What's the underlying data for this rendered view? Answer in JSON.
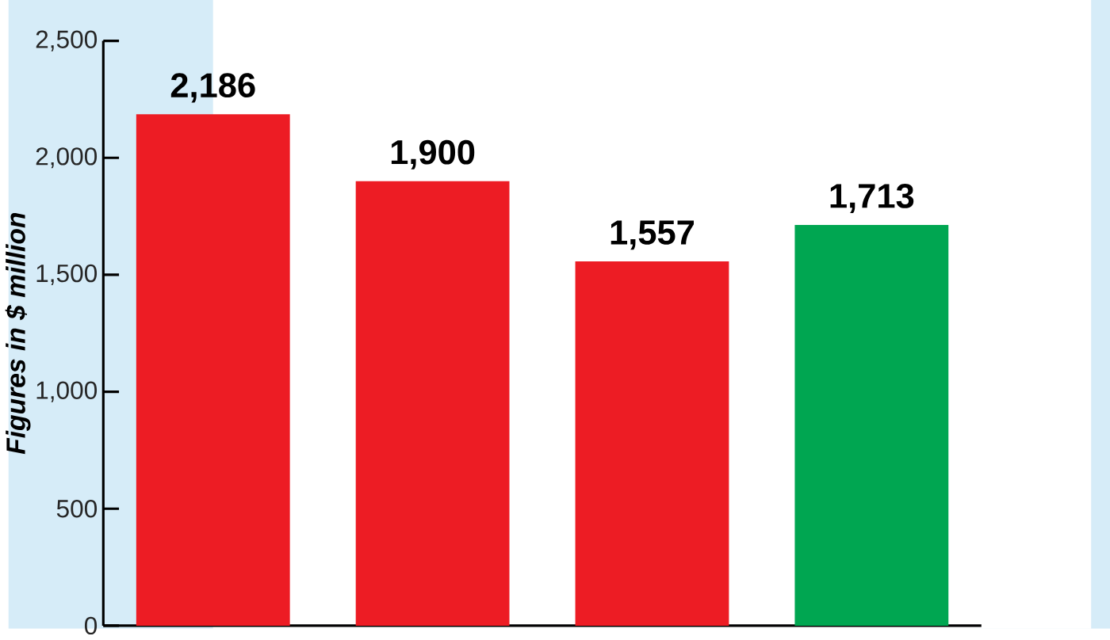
{
  "chart_data": {
    "type": "bar",
    "ylabel": "*Figures in $ million*",
    "categories": [
      null,
      null,
      null,
      null
    ],
    "values": [
      2186,
      1900,
      1557,
      1713
    ],
    "colors": [
      "#ed1c24",
      "#ed1c24",
      "#ed1c24",
      "#00a651"
    ],
    "ylim": [
      0,
      2500
    ],
    "yticks": [
      {
        "value": 0,
        "label": "0"
      },
      {
        "value": 500,
        "label": "500"
      },
      {
        "value": 1000,
        "label": "1,000"
      },
      {
        "value": 1500,
        "label": "1,500"
      },
      {
        "value": 2000,
        "label": "2,000"
      },
      {
        "value": 2500,
        "label": "2,500"
      }
    ],
    "value_labels": [
      "2,186",
      "1,900",
      "1,557",
      "1,713"
    ]
  }
}
